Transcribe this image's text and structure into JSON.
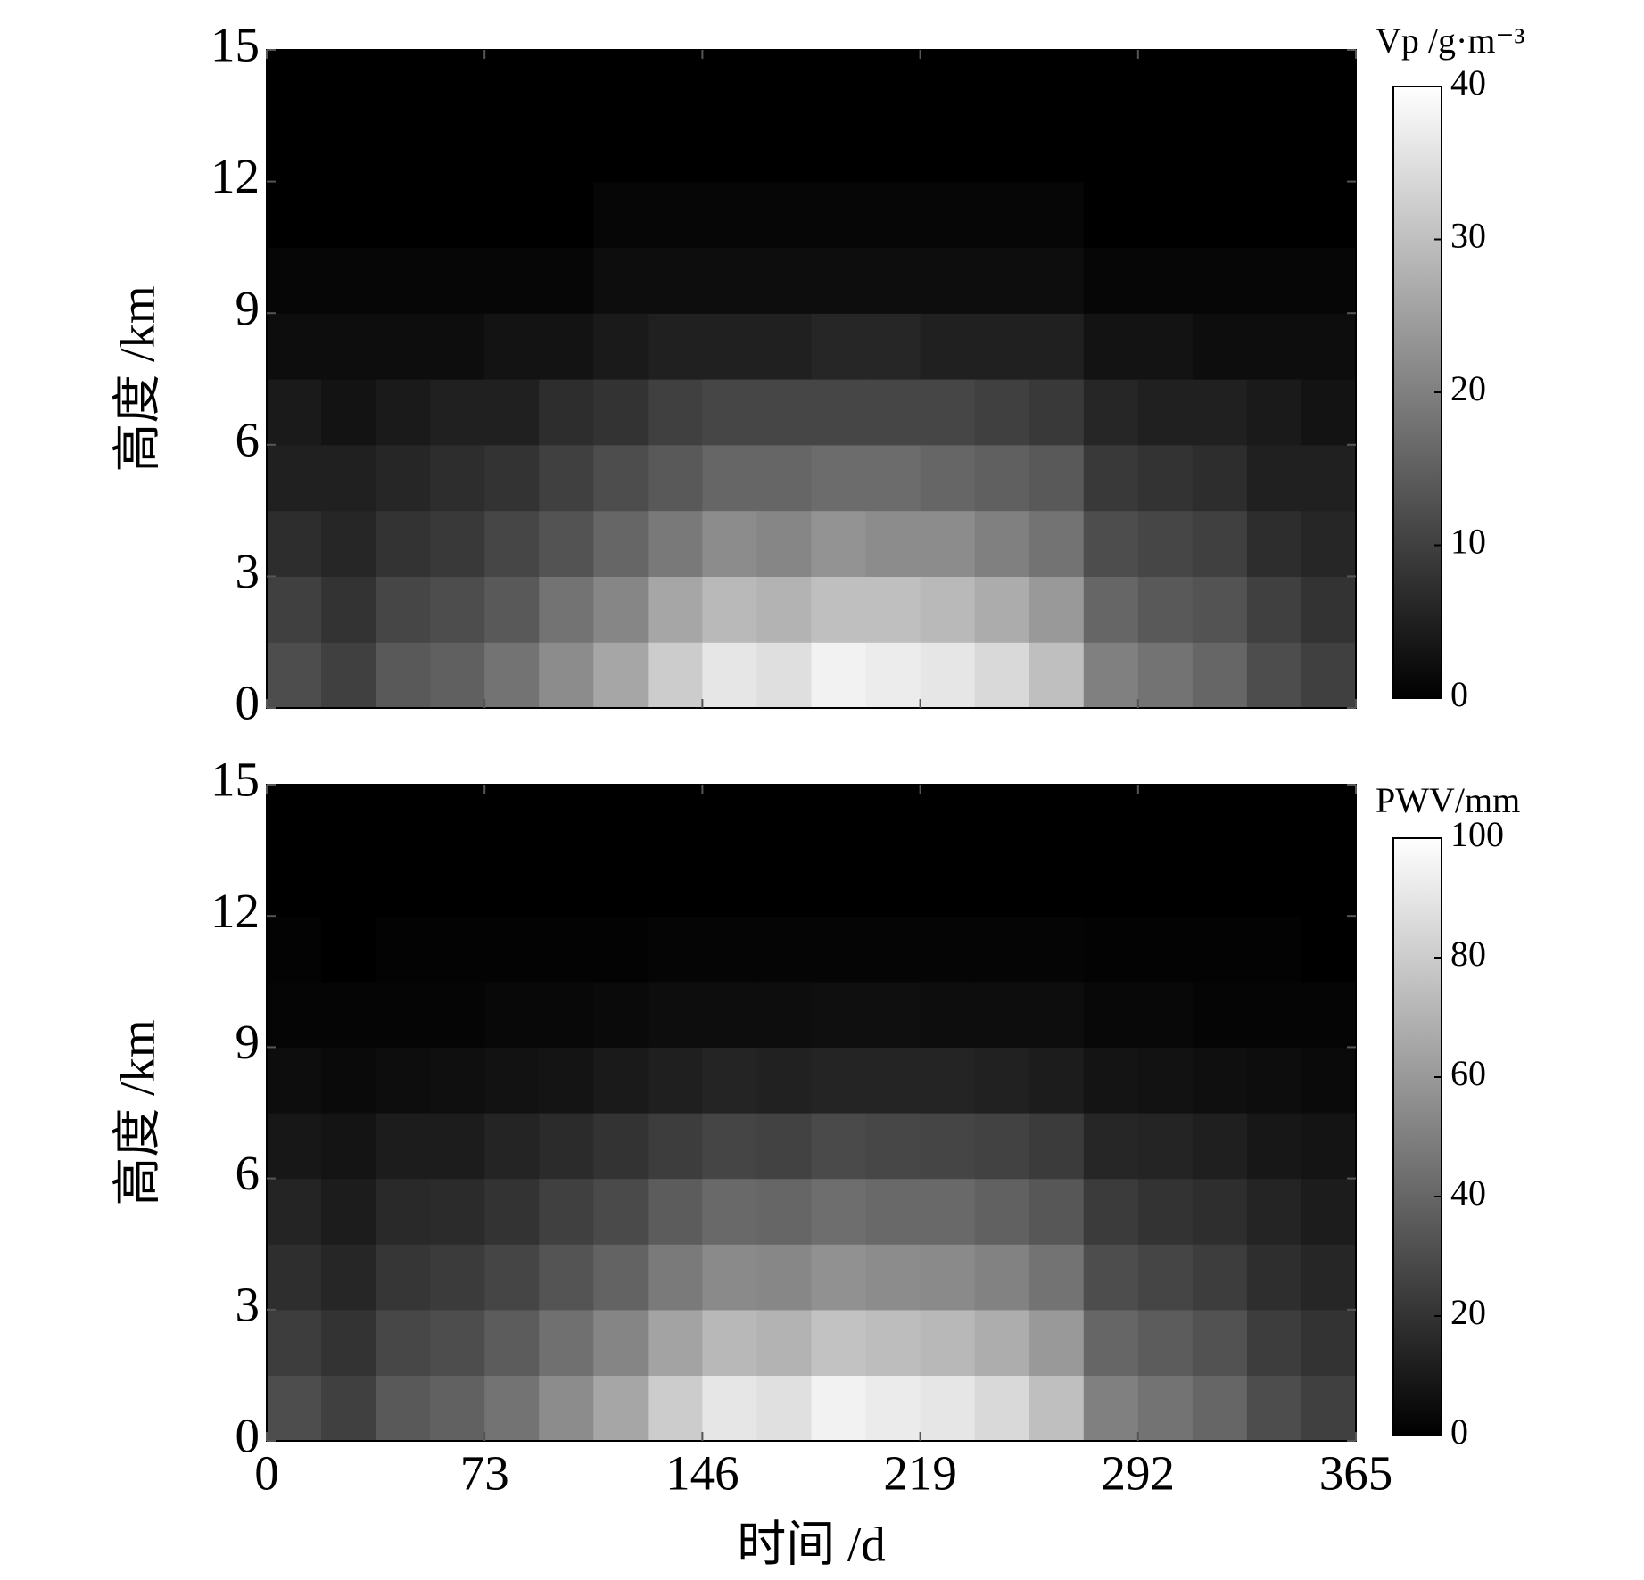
{
  "chart_data": [
    {
      "type": "heatmap",
      "colorbar_title": "Vp /g·m⁻³",
      "y_label": "高度 /km",
      "colormap": "gray",
      "clim": [
        0,
        40
      ],
      "cticks": [
        0,
        10,
        20,
        30,
        40
      ],
      "xlim": [
        0,
        365
      ],
      "xticks": [
        0,
        73,
        146,
        219,
        292,
        365
      ],
      "ylim": [
        0,
        15
      ],
      "yticks": [
        0,
        3,
        6,
        9,
        12,
        15
      ],
      "x_bins": [
        0,
        18.25,
        36.5,
        54.75,
        73,
        91.25,
        109.5,
        127.75,
        146,
        164.25,
        182.5,
        200.75,
        219,
        237.25,
        255.5,
        273.75,
        292,
        310.25,
        328.5,
        346.75,
        365
      ],
      "y_bins": [
        0,
        1.5,
        3,
        4.5,
        6,
        7.5,
        9,
        10.5,
        12,
        13.5,
        15
      ],
      "values": [
        [
          12,
          10,
          7,
          5,
          4,
          2,
          1,
          0,
          0,
          0
        ],
        [
          10,
          8,
          6,
          5,
          3,
          2,
          1,
          0,
          0,
          0
        ],
        [
          14,
          11,
          8,
          6,
          4,
          2,
          1,
          0,
          0,
          0
        ],
        [
          15,
          12,
          9,
          7,
          5,
          2,
          1,
          0,
          0,
          0
        ],
        [
          18,
          14,
          11,
          8,
          5,
          3,
          1,
          0,
          0,
          0
        ],
        [
          22,
          18,
          13,
          10,
          7,
          3,
          1,
          0,
          0,
          0
        ],
        [
          26,
          21,
          16,
          12,
          8,
          4,
          2,
          1,
          0,
          0
        ],
        [
          32,
          26,
          19,
          14,
          10,
          5,
          2,
          1,
          0,
          0
        ],
        [
          36,
          29,
          22,
          16,
          11,
          5,
          2,
          1,
          0,
          0
        ],
        [
          35,
          28,
          21,
          16,
          11,
          5,
          2,
          1,
          0,
          0
        ],
        [
          38,
          30,
          23,
          17,
          11,
          6,
          2,
          1,
          0,
          0
        ],
        [
          37,
          30,
          22,
          17,
          11,
          6,
          2,
          1,
          0,
          0
        ],
        [
          36,
          29,
          22,
          16,
          11,
          5,
          2,
          1,
          0,
          0
        ],
        [
          34,
          27,
          20,
          15,
          10,
          5,
          2,
          1,
          0,
          0
        ],
        [
          30,
          24,
          18,
          14,
          9,
          5,
          2,
          1,
          0,
          0
        ],
        [
          20,
          16,
          12,
          9,
          6,
          3,
          1,
          0,
          0,
          0
        ],
        [
          18,
          14,
          11,
          8,
          5,
          3,
          1,
          0,
          0,
          0
        ],
        [
          16,
          13,
          10,
          7,
          5,
          2,
          1,
          0,
          0,
          0
        ],
        [
          12,
          10,
          7,
          5,
          4,
          2,
          1,
          0,
          0,
          0
        ],
        [
          10,
          8,
          6,
          5,
          3,
          2,
          1,
          0,
          0,
          0
        ]
      ]
    },
    {
      "type": "heatmap",
      "colorbar_title": "PWV/mm",
      "y_label": "高度 /km",
      "x_label": "时间 /d",
      "colormap": "gray",
      "clim": [
        0,
        100
      ],
      "cticks": [
        0,
        20,
        40,
        60,
        80,
        100
      ],
      "xlim": [
        0,
        365
      ],
      "xticks": [
        0,
        73,
        146,
        219,
        292,
        365
      ],
      "ylim": [
        0,
        15
      ],
      "yticks": [
        0,
        3,
        6,
        9,
        12,
        15
      ],
      "x_bins": [
        0,
        18.25,
        36.5,
        54.75,
        73,
        91.25,
        109.5,
        127.75,
        146,
        164.25,
        182.5,
        200.75,
        219,
        237.25,
        255.5,
        273.75,
        292,
        310.25,
        328.5,
        346.75,
        365
      ],
      "y_bins": [
        0,
        1.5,
        3,
        4.5,
        6,
        7.5,
        9,
        10.5,
        12,
        13.5,
        15
      ],
      "values": [
        [
          30,
          24,
          18,
          14,
          9,
          5,
          2,
          1,
          0,
          0
        ],
        [
          25,
          20,
          15,
          11,
          8,
          4,
          2,
          0,
          0,
          0
        ],
        [
          35,
          28,
          21,
          16,
          11,
          5,
          2,
          1,
          0,
          0
        ],
        [
          38,
          30,
          23,
          17,
          11,
          6,
          2,
          1,
          0,
          0
        ],
        [
          45,
          36,
          27,
          20,
          14,
          7,
          3,
          1,
          0,
          0
        ],
        [
          55,
          44,
          33,
          25,
          17,
          8,
          3,
          1,
          0,
          0
        ],
        [
          65,
          52,
          39,
          29,
          20,
          10,
          4,
          1,
          0,
          0
        ],
        [
          80,
          64,
          48,
          36,
          24,
          12,
          5,
          2,
          0,
          0
        ],
        [
          90,
          72,
          54,
          41,
          27,
          14,
          5,
          2,
          0,
          0
        ],
        [
          88,
          70,
          53,
          40,
          26,
          13,
          5,
          2,
          0,
          0
        ],
        [
          95,
          76,
          57,
          43,
          29,
          14,
          6,
          2,
          0,
          0
        ],
        [
          92,
          74,
          55,
          41,
          28,
          14,
          6,
          2,
          0,
          0
        ],
        [
          90,
          72,
          54,
          41,
          27,
          14,
          5,
          2,
          0,
          0
        ],
        [
          85,
          68,
          51,
          38,
          26,
          13,
          5,
          2,
          0,
          0
        ],
        [
          75,
          60,
          45,
          34,
          23,
          11,
          5,
          2,
          0,
          0
        ],
        [
          50,
          40,
          30,
          23,
          15,
          8,
          3,
          1,
          0,
          0
        ],
        [
          45,
          36,
          27,
          20,
          14,
          7,
          3,
          1,
          0,
          0
        ],
        [
          40,
          32,
          24,
          18,
          12,
          6,
          2,
          1,
          0,
          0
        ],
        [
          30,
          24,
          18,
          14,
          9,
          5,
          2,
          1,
          0,
          0
        ],
        [
          25,
          20,
          15,
          11,
          8,
          4,
          2,
          0,
          0,
          0
        ]
      ]
    }
  ]
}
